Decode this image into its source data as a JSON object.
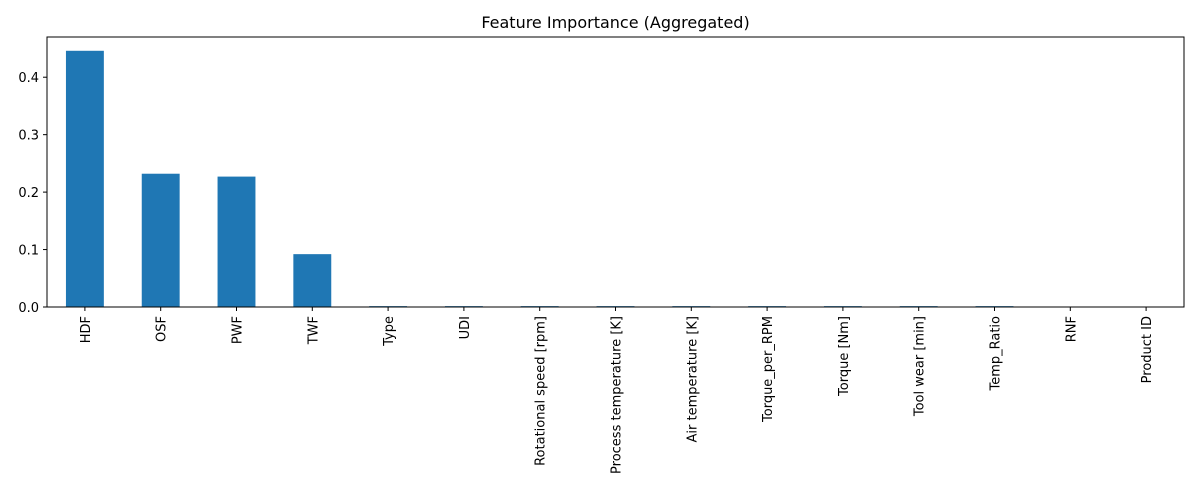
{
  "chart_data": {
    "type": "bar",
    "title": "Feature Importance (Aggregated)",
    "xlabel": "",
    "ylabel": "",
    "categories": [
      "HDF",
      "OSF",
      "PWF",
      "TWF",
      "Type",
      "UDI",
      "Rotational speed [rpm]",
      "Process temperature [K]",
      "Air temperature [K]",
      "Torque_per_RPM",
      "Torque [Nm]",
      "Tool wear [min]",
      "Temp_Ratio",
      "RNF",
      "Product ID"
    ],
    "values": [
      0.446,
      0.232,
      0.227,
      0.092,
      0.0015,
      0.0015,
      0.0015,
      0.0015,
      0.0015,
      0.0015,
      0.0015,
      0.0015,
      0.0015,
      0.0,
      0.0
    ],
    "ylim": [
      0,
      0.47
    ],
    "yticks": [
      "0.0",
      "0.1",
      "0.2",
      "0.3",
      "0.4"
    ],
    "grid": false,
    "bar_color": "#1f77b4"
  }
}
